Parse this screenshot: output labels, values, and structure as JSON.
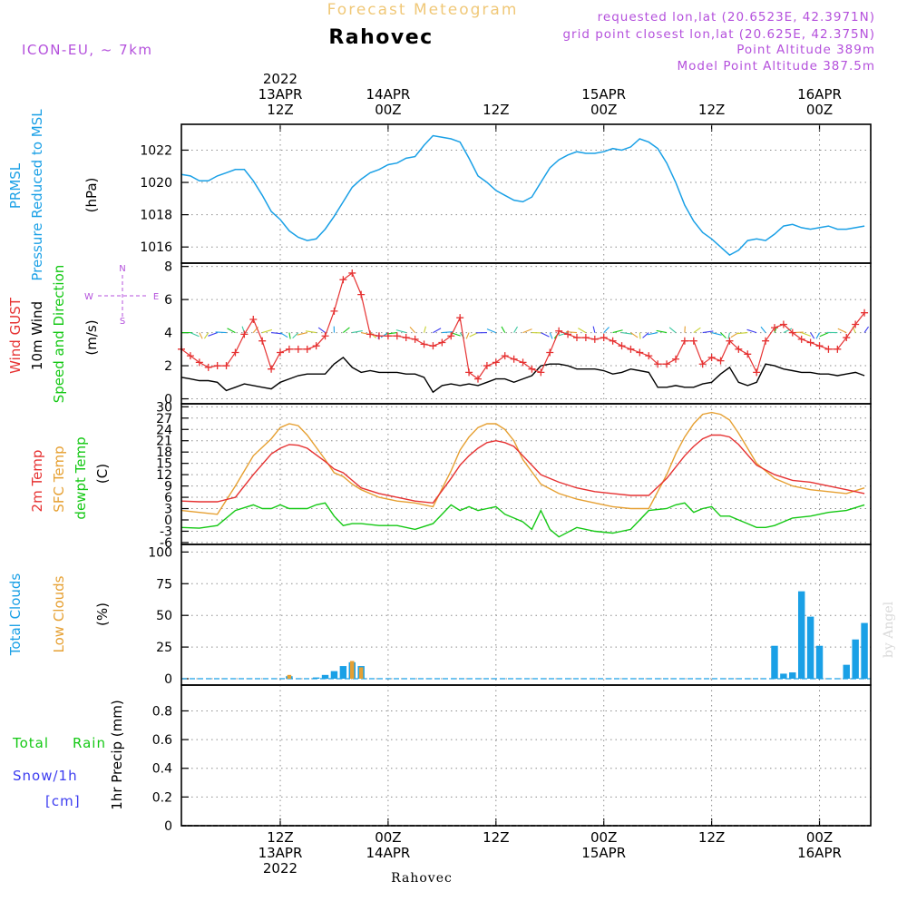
{
  "header": {
    "title": "Forecast Meteogram",
    "location": "Rahovec",
    "model": "ICON-EU, ~ 7km",
    "requested": "requested lon,lat (20.6523E, 42.3971N)",
    "grid_point": "grid point closest lon,lat (20.625E, 42.375N)",
    "point_altitude": "Point Altitude 389m",
    "model_altitude": "Model Point Altitude 387.5m",
    "credit": "by Angel",
    "footer_location": "Rahovec"
  },
  "colors": {
    "pressure": "#1aa0e6",
    "gust": "#e63232",
    "wind_speed": "#000000",
    "t2m": "#e63232",
    "sfc": "#e6a032",
    "dewpt": "#14c814",
    "total_clouds": "#1aa0e6",
    "low_clouds": "#e6a032",
    "rain": "#14c814",
    "snow": "#3c3cf0",
    "title": "#f0c878",
    "meta": "#b450dc"
  },
  "time_axis": {
    "top_labels": [
      {
        "h": 12,
        "lines": [
          "2022",
          "13APR",
          "12Z"
        ]
      },
      {
        "h": 24,
        "lines": [
          "14APR",
          "00Z"
        ]
      },
      {
        "h": 36,
        "lines": [
          "12Z"
        ]
      },
      {
        "h": 48,
        "lines": [
          "15APR",
          "00Z"
        ]
      },
      {
        "h": 60,
        "lines": [
          "12Z"
        ]
      },
      {
        "h": 72,
        "lines": [
          "16APR",
          "00Z"
        ]
      }
    ],
    "bottom_labels": [
      {
        "h": 12,
        "lines": [
          "12Z",
          "13APR",
          "2022"
        ]
      },
      {
        "h": 24,
        "lines": [
          "00Z",
          "14APR"
        ]
      },
      {
        "h": 36,
        "lines": [
          "12Z"
        ]
      },
      {
        "h": 48,
        "lines": [
          "00Z",
          "15APR"
        ]
      },
      {
        "h": 60,
        "lines": [
          "12Z"
        ]
      },
      {
        "h": 72,
        "lines": [
          "00Z",
          "16APR"
        ]
      }
    ]
  },
  "chart_data": [
    {
      "id": "pressure",
      "type": "line",
      "x_unit": "hours after 13APR 00Z",
      "xlim": [
        1.0,
        77.7
      ],
      "ylim": [
        1015,
        1023.6
      ],
      "yticks": [
        1016,
        1018,
        1020,
        1022
      ],
      "labels": {
        "name": "PRMSL",
        "desc": "Pressure Reduced to MSL",
        "unit": "(hPa)"
      },
      "series": [
        {
          "name": "PRMSL",
          "x": [
            1,
            2,
            3,
            4,
            5,
            6,
            7,
            8,
            9,
            10,
            11,
            12,
            13,
            14,
            15,
            16,
            17,
            18,
            19,
            20,
            21,
            22,
            23,
            24,
            25,
            26,
            27,
            28,
            29,
            30,
            31,
            32,
            33,
            34,
            35,
            36,
            37,
            38,
            39,
            40,
            41,
            42,
            43,
            44,
            45,
            46,
            47,
            48,
            49,
            50,
            51,
            52,
            53,
            54,
            55,
            56,
            57,
            58,
            59,
            60,
            61,
            62,
            63,
            64,
            65,
            66,
            67,
            68,
            69,
            70,
            71,
            72,
            73,
            74,
            75,
            76,
            77
          ],
          "y": [
            1020.5,
            1020.4,
            1020.1,
            1020.1,
            1020.4,
            1020.6,
            1020.8,
            1020.8,
            1020.1,
            1019.2,
            1018.2,
            1017.7,
            1017.0,
            1016.6,
            1016.4,
            1016.5,
            1017.1,
            1017.9,
            1018.8,
            1019.7,
            1020.2,
            1020.6,
            1020.8,
            1021.1,
            1021.2,
            1021.5,
            1021.6,
            1022.3,
            1022.9,
            1022.8,
            1022.7,
            1022.5,
            1021.5,
            1020.4,
            1020.0,
            1019.5,
            1019.2,
            1018.9,
            1018.8,
            1019.1,
            1020.0,
            1020.9,
            1021.4,
            1021.7,
            1021.9,
            1021.8,
            1021.8,
            1021.9,
            1022.1,
            1022.0,
            1022.2,
            1022.7,
            1022.5,
            1022.1,
            1021.2,
            1020.0,
            1018.6,
            1017.6,
            1016.9,
            1016.5,
            1016.0,
            1015.5,
            1015.8,
            1016.4,
            1016.5,
            1016.4,
            1016.8,
            1017.3,
            1017.4,
            1017.2,
            1017.1,
            1017.2,
            1017.3,
            1017.1,
            1017.1,
            1017.2,
            1017.3
          ]
        }
      ]
    },
    {
      "id": "wind",
      "type": "line",
      "x_unit": "hours after 13APR 00Z",
      "xlim": [
        1.0,
        77.7
      ],
      "ylim": [
        -0.3,
        8.2
      ],
      "yticks": [
        0,
        2,
        4,
        6,
        8
      ],
      "labels": {
        "gust": "Wind GUST",
        "speed1": "10m Wind",
        "speed2": "Speed and Direction",
        "unit": "(m/s)",
        "compass_n": "N",
        "compass_s": "S",
        "compass_w": "W",
        "compass_e": "E"
      },
      "series": [
        {
          "name": "Wind GUST",
          "x": [
            1,
            2,
            3,
            4,
            5,
            6,
            7,
            8,
            9,
            10,
            11,
            12,
            13,
            14,
            15,
            16,
            17,
            18,
            19,
            20,
            21,
            22,
            23,
            24,
            25,
            26,
            27,
            28,
            29,
            30,
            31,
            32,
            33,
            34,
            35,
            36,
            37,
            38,
            39,
            40,
            41,
            42,
            43,
            44,
            45,
            46,
            47,
            48,
            49,
            50,
            51,
            52,
            53,
            54,
            55,
            56,
            57,
            58,
            59,
            60,
            61,
            62,
            63,
            64,
            65,
            66,
            67,
            68,
            69,
            70,
            71,
            72,
            73,
            74,
            75,
            76,
            77
          ],
          "y": [
            3.0,
            2.6,
            2.2,
            1.9,
            2.0,
            2.0,
            2.8,
            3.9,
            4.8,
            3.5,
            1.8,
            2.8,
            3.0,
            3.0,
            3.0,
            3.2,
            3.8,
            5.3,
            7.2,
            7.6,
            6.3,
            3.9,
            3.8,
            3.8,
            3.8,
            3.7,
            3.6,
            3.3,
            3.2,
            3.4,
            3.8,
            4.9,
            1.6,
            1.2,
            2.0,
            2.2,
            2.6,
            2.4,
            2.2,
            1.8,
            1.6,
            2.8,
            4.1,
            3.9,
            3.7,
            3.7,
            3.6,
            3.7,
            3.5,
            3.2,
            3.0,
            2.8,
            2.6,
            2.1,
            2.1,
            2.4,
            3.5,
            3.5,
            2.1,
            2.5,
            2.3,
            3.5,
            3.0,
            2.7,
            1.6,
            3.5,
            4.3,
            4.5,
            4.0,
            3.6,
            3.4,
            3.2,
            3.0,
            3.0,
            3.7,
            4.5,
            5.2
          ]
        },
        {
          "name": "10m Wind Speed",
          "x": [
            1,
            2,
            3,
            4,
            5,
            6,
            7,
            8,
            9,
            10,
            11,
            12,
            13,
            14,
            15,
            16,
            17,
            18,
            19,
            20,
            21,
            22,
            23,
            24,
            25,
            26,
            27,
            28,
            29,
            30,
            31,
            32,
            33,
            34,
            35,
            36,
            37,
            38,
            39,
            40,
            41,
            42,
            43,
            44,
            45,
            46,
            47,
            48,
            49,
            50,
            51,
            52,
            53,
            54,
            55,
            56,
            57,
            58,
            59,
            60,
            61,
            62,
            63,
            64,
            65,
            66,
            67,
            68,
            69,
            70,
            71,
            72,
            73,
            74,
            75,
            76,
            77
          ],
          "y": [
            1.3,
            1.2,
            1.1,
            1.1,
            1.0,
            0.5,
            0.7,
            0.9,
            0.8,
            0.7,
            0.6,
            1.0,
            1.2,
            1.4,
            1.5,
            1.5,
            1.5,
            2.1,
            2.5,
            1.9,
            1.6,
            1.7,
            1.6,
            1.6,
            1.6,
            1.5,
            1.5,
            1.3,
            0.4,
            0.8,
            0.9,
            0.8,
            0.9,
            0.8,
            1.0,
            1.2,
            1.2,
            1.0,
            1.2,
            1.4,
            2.0,
            2.1,
            2.1,
            2.0,
            1.8,
            1.8,
            1.8,
            1.7,
            1.5,
            1.6,
            1.8,
            1.7,
            1.6,
            0.7,
            0.7,
            0.8,
            0.7,
            0.7,
            0.9,
            1.0,
            1.5,
            1.9,
            1.0,
            0.8,
            1.0,
            2.1,
            2.0,
            1.8,
            1.7,
            1.6,
            1.6,
            1.5,
            1.5,
            1.4,
            1.5,
            1.6,
            1.4
          ]
        }
      ]
    },
    {
      "id": "temperature",
      "type": "line",
      "x_unit": "hours after 13APR 00Z",
      "xlim": [
        1.0,
        77.7
      ],
      "ylim": [
        -6.5,
        30.8
      ],
      "yticks": [
        -6,
        -3,
        0,
        3,
        6,
        9,
        12,
        15,
        18,
        21,
        24,
        27,
        30
      ],
      "labels": {
        "t2m": "2m Temp",
        "sfc": "SFC Temp",
        "dewpt": "dewpt Temp",
        "unit": "(C)"
      },
      "series": [
        {
          "name": "2m Temp",
          "x": [
            1,
            3,
            5,
            7,
            9,
            11,
            12,
            13,
            14,
            15,
            17,
            18,
            19,
            20,
            21,
            23,
            25,
            27,
            29,
            31,
            32,
            33,
            34,
            35,
            36,
            37,
            38,
            39,
            41,
            43,
            45,
            47,
            49,
            51,
            53,
            55,
            56,
            57,
            58,
            59,
            60,
            61,
            62,
            63,
            65,
            67,
            69,
            71,
            73,
            75,
            77
          ],
          "y": [
            5.0,
            4.8,
            4.8,
            6.0,
            12.0,
            17.5,
            19.0,
            20.0,
            19.8,
            19.0,
            15.5,
            13.5,
            12.5,
            10.5,
            8.5,
            7.0,
            6.0,
            5.0,
            4.5,
            11.0,
            14.5,
            17.0,
            19.0,
            20.5,
            21.0,
            20.5,
            19.5,
            17.0,
            12.0,
            10.0,
            8.5,
            7.5,
            7.0,
            6.5,
            6.5,
            11.0,
            14.0,
            17.0,
            19.5,
            21.5,
            22.5,
            22.5,
            22.0,
            20.0,
            14.5,
            12.0,
            10.5,
            10.0,
            9.0,
            8.0,
            7.0
          ]
        },
        {
          "name": "SFC Temp",
          "x": [
            1,
            3,
            5,
            7,
            9,
            11,
            12,
            13,
            14,
            15,
            17,
            18,
            19,
            20,
            21,
            23,
            25,
            27,
            29,
            31,
            32,
            33,
            34,
            35,
            36,
            37,
            38,
            39,
            41,
            43,
            45,
            47,
            49,
            51,
            53,
            55,
            56,
            57,
            58,
            59,
            60,
            61,
            62,
            63,
            65,
            67,
            69,
            71,
            73,
            75,
            77
          ],
          "y": [
            2.5,
            2.0,
            1.5,
            9.0,
            17.0,
            21.5,
            24.5,
            25.5,
            25.0,
            22.5,
            16.0,
            12.5,
            11.5,
            9.5,
            8.0,
            6.0,
            5.0,
            4.5,
            3.5,
            13.0,
            18.5,
            22.0,
            24.5,
            25.5,
            25.5,
            24.0,
            21.0,
            16.0,
            9.5,
            7.0,
            5.5,
            4.5,
            3.5,
            3.0,
            3.0,
            12.0,
            17.5,
            22.0,
            25.5,
            28.0,
            28.5,
            28.0,
            26.5,
            23.0,
            15.0,
            11.0,
            9.0,
            8.0,
            7.5,
            7.0,
            8.5
          ]
        },
        {
          "name": "dewpt Temp",
          "x": [
            1,
            3,
            5,
            7,
            9,
            10,
            11,
            12,
            13,
            14,
            15,
            16,
            17,
            18,
            19,
            20,
            21,
            23,
            25,
            27,
            29,
            31,
            32,
            33,
            34,
            35,
            36,
            37,
            38,
            39,
            40,
            41,
            42,
            43,
            45,
            47,
            49,
            51,
            53,
            55,
            56,
            57,
            58,
            59,
            60,
            61,
            62,
            63,
            64,
            65,
            66,
            67,
            69,
            71,
            73,
            75,
            77
          ],
          "y": [
            -2.0,
            -2.2,
            -1.5,
            2.5,
            4.0,
            3.0,
            3.0,
            4.0,
            3.0,
            3.0,
            3.0,
            4.0,
            4.5,
            1.0,
            -1.5,
            -1.0,
            -1.0,
            -1.5,
            -1.5,
            -2.5,
            -1.0,
            4.0,
            2.5,
            3.5,
            2.5,
            3.0,
            3.5,
            1.5,
            0.5,
            -0.5,
            -2.5,
            2.5,
            -2.5,
            -4.5,
            -2.0,
            -3.0,
            -3.5,
            -2.5,
            2.5,
            3.0,
            4.0,
            4.5,
            2.0,
            3.0,
            3.5,
            1.0,
            1.0,
            0.0,
            -1.0,
            -2.0,
            -2.0,
            -1.5,
            0.5,
            1.0,
            2.0,
            2.5,
            4.0
          ]
        }
      ]
    },
    {
      "id": "clouds",
      "type": "bar",
      "x_unit": "hours after 13APR 00Z",
      "xlim": [
        1.0,
        77.7
      ],
      "ylim": [
        -5,
        106
      ],
      "yticks": [
        0,
        25,
        50,
        75,
        100
      ],
      "labels": {
        "total": "Total Clouds",
        "low": "Low Clouds",
        "unit": "(%)"
      },
      "series": [
        {
          "name": "Total Clouds",
          "x": [
            13,
            16,
            17,
            18,
            19,
            20,
            21,
            67,
            68,
            69,
            70,
            71,
            72,
            73,
            75,
            76,
            77
          ],
          "y": [
            2,
            1,
            3,
            6,
            10,
            13,
            10,
            26,
            4,
            5,
            69,
            49,
            26,
            0,
            11,
            31,
            44
          ]
        },
        {
          "name": "Low Clouds",
          "x": [
            13,
            16,
            17,
            18,
            19,
            20,
            21,
            67,
            68,
            69,
            70,
            71,
            72,
            73,
            75,
            76,
            77
          ],
          "y": [
            3,
            0,
            0,
            0,
            0,
            14,
            9,
            0,
            0,
            0,
            0,
            0,
            0,
            0,
            0,
            0,
            0
          ]
        }
      ]
    },
    {
      "id": "precip",
      "type": "bar",
      "x_unit": "hours after 13APR 00Z",
      "xlim": [
        1.0,
        77.7
      ],
      "ylim": [
        0,
        0.98
      ],
      "yticks": [
        0,
        0.2,
        0.4,
        0.6,
        0.8
      ],
      "labels": {
        "total": "Total",
        "rain": "Rain",
        "snow": "Snow/1h",
        "snow_unit": "[cm]",
        "axis": "1hr Precip (mm)"
      },
      "series": [
        {
          "name": "Total",
          "x": [],
          "y": []
        }
      ]
    }
  ]
}
